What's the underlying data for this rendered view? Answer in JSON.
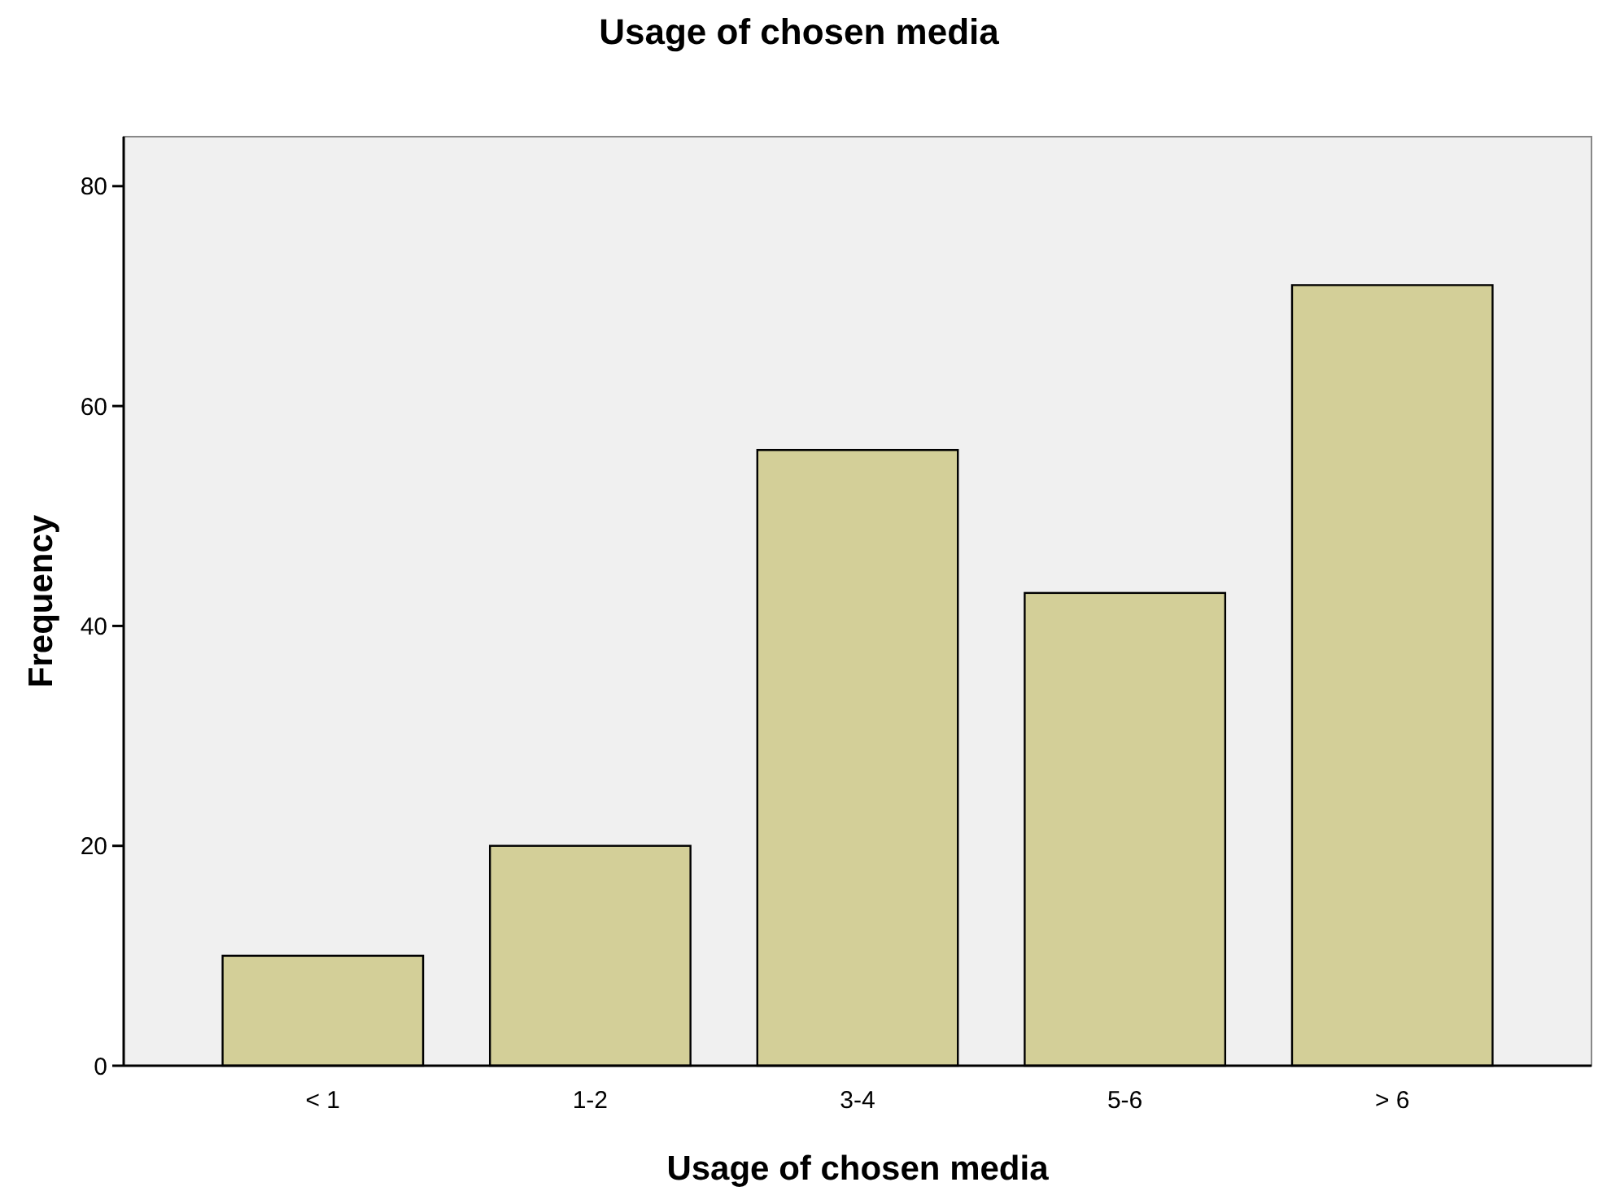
{
  "chart_data": {
    "type": "bar",
    "title": "Usage of chosen media",
    "xlabel": "Usage of chosen media",
    "ylabel": "Frequency",
    "categories": [
      "< 1",
      "1-2",
      "3-4",
      "5-6",
      "> 6"
    ],
    "values": [
      10,
      20,
      56,
      43,
      71
    ],
    "color": "#d3cf98",
    "ylim": [
      0,
      84.5
    ],
    "yticks": [
      0,
      20,
      40,
      60,
      80
    ],
    "grid": false
  }
}
